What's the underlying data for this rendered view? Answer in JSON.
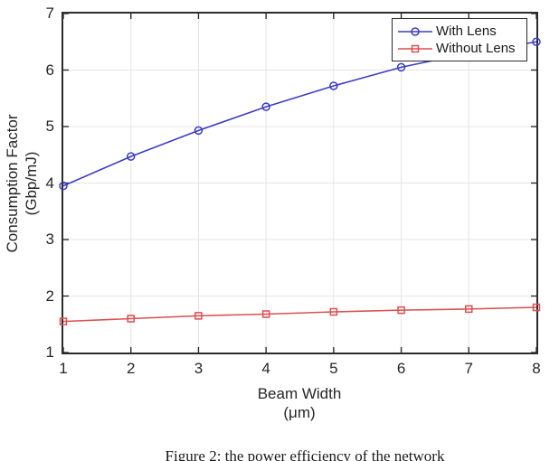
{
  "figure": {
    "caption": "Figure 2: the power efficiency of the network"
  },
  "chart_data": {
    "type": "line",
    "title": "",
    "xlabel": "Beam Width",
    "xlabel_unit": "(μm)",
    "ylabel": "Consumption Factor",
    "ylabel_unit": "(Gbp/mJ)",
    "x": [
      1,
      2,
      3,
      4,
      5,
      6,
      7,
      8
    ],
    "xlim": [
      1,
      8
    ],
    "ylim": [
      1,
      7
    ],
    "xticks": [
      "1",
      "2",
      "3",
      "4",
      "5",
      "6",
      "7",
      "8"
    ],
    "yticks": [
      "1",
      "2",
      "3",
      "4",
      "5",
      "6",
      "7"
    ],
    "grid": true,
    "legend_position": "top-right",
    "series": [
      {
        "name": "With Lens",
        "marker": "circle",
        "color": "#3d3dc2",
        "values": [
          3.95,
          4.47,
          4.93,
          5.35,
          5.72,
          6.05,
          6.3,
          6.5
        ]
      },
      {
        "name": "Without Lens",
        "marker": "square",
        "color": "#d95050",
        "values": [
          1.55,
          1.6,
          1.65,
          1.68,
          1.72,
          1.75,
          1.77,
          1.8
        ]
      }
    ],
    "colors": {
      "frame": "#2b2b2b",
      "grid": "#e4e4e4",
      "background": "#ffffff"
    }
  }
}
